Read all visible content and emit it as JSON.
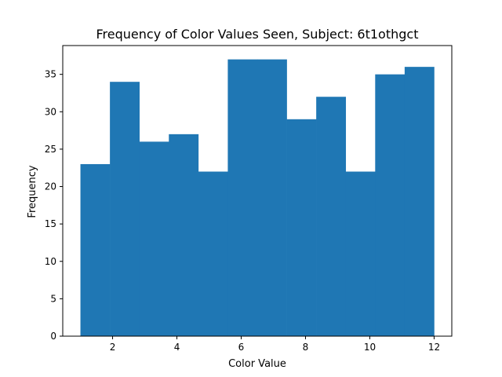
{
  "chart_data": {
    "type": "bar",
    "title": "Frequency of Color Values Seen, Subject: 6t1othgct",
    "xlabel": "Color Value",
    "ylabel": "Frequency",
    "bin_edges": [
      1.0,
      1.9167,
      2.8333,
      3.75,
      4.6667,
      5.5833,
      6.5,
      7.4167,
      8.3333,
      9.25,
      10.1667,
      11.0833,
      12.0
    ],
    "values": [
      23,
      34,
      26,
      27,
      22,
      37,
      37,
      29,
      32,
      22,
      35,
      36
    ],
    "xlim": [
      0.45,
      12.55
    ],
    "ylim": [
      0,
      38.85
    ],
    "xticks": [
      2,
      4,
      6,
      8,
      10,
      12
    ],
    "xtick_labels": [
      "2",
      "4",
      "6",
      "8",
      "10",
      "12"
    ],
    "yticks": [
      0,
      5,
      10,
      15,
      20,
      25,
      30,
      35
    ],
    "ytick_labels": [
      "0",
      "5",
      "10",
      "15",
      "20",
      "25",
      "30",
      "35"
    ],
    "bar_color": "#1f77b4",
    "grid": false,
    "legend": "none"
  }
}
